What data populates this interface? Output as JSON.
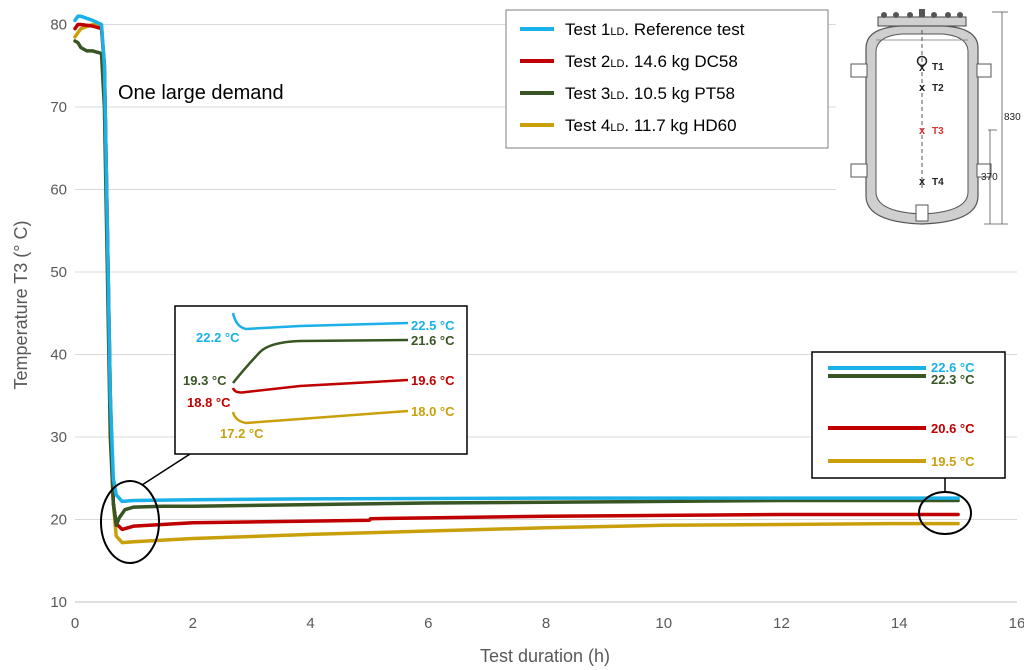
{
  "chart_data": {
    "type": "line",
    "xlabel": "Test duration (h)",
    "ylabel": "Temperature T3 (° C)",
    "xlim": [
      0,
      16
    ],
    "ylim": [
      10,
      82
    ],
    "x_ticks": [
      0,
      2,
      4,
      6,
      8,
      10,
      12,
      14,
      16
    ],
    "y_ticks": [
      10,
      20,
      30,
      40,
      50,
      60,
      70,
      80
    ],
    "grid": "horizontal",
    "legend_position": "top-right",
    "annotation": "One large demand",
    "series": [
      {
        "name": "Test 1",
        "subscript": "LD",
        "desc": ". Reference test",
        "color": "#1ab0e8",
        "x": [
          0,
          0.05,
          0.1,
          0.3,
          0.45,
          0.5,
          0.55,
          0.6,
          0.65,
          0.7,
          0.8,
          1.0,
          2,
          4,
          6,
          8,
          10,
          12,
          14,
          15
        ],
        "y": [
          80.5,
          81,
          81,
          80.5,
          80,
          75,
          55,
          35,
          25,
          23,
          22.2,
          22.3,
          22.4,
          22.5,
          22.55,
          22.6,
          22.6,
          22.6,
          22.6,
          22.6
        ]
      },
      {
        "name": "Test 2",
        "subscript": "LD",
        "desc": ". 14.6 kg DC58",
        "color": "#c00000",
        "x": [
          0,
          0.05,
          0.1,
          0.3,
          0.45,
          0.5,
          0.55,
          0.6,
          0.65,
          0.7,
          0.8,
          1.0,
          2,
          4,
          5,
          5.02,
          6,
          8,
          10,
          12,
          14,
          15
        ],
        "y": [
          79.5,
          80,
          80,
          79.8,
          79.5,
          75,
          55,
          35,
          22,
          19.5,
          18.8,
          19.2,
          19.6,
          19.8,
          19.9,
          20.1,
          20.2,
          20.4,
          20.5,
          20.6,
          20.6,
          20.6
        ]
      },
      {
        "name": "Test 3",
        "subscript": "LD",
        "desc": ". 10.5 kg PT58",
        "color": "#375623",
        "x": [
          0,
          0.05,
          0.1,
          0.2,
          0.3,
          0.45,
          0.5,
          0.55,
          0.6,
          0.65,
          0.7,
          0.75,
          0.85,
          1.0,
          1.5,
          2,
          4,
          6,
          8,
          10,
          12,
          14,
          15
        ],
        "y": [
          78,
          77.8,
          77.2,
          76.8,
          76.8,
          76.5,
          70,
          50,
          30,
          22,
          19.3,
          20.2,
          21.2,
          21.5,
          21.6,
          21.6,
          21.8,
          22.0,
          22.1,
          22.2,
          22.3,
          22.3,
          22.3
        ]
      },
      {
        "name": "Test 4",
        "subscript": "LD",
        "desc": ". 11.7 kg HD60",
        "color": "#c9a00c",
        "x": [
          0,
          0.05,
          0.1,
          0.3,
          0.45,
          0.5,
          0.55,
          0.6,
          0.65,
          0.7,
          0.8,
          1.0,
          2,
          4,
          6,
          8,
          10,
          12,
          14,
          15
        ],
        "y": [
          78.5,
          79,
          79.5,
          80,
          79.8,
          75,
          55,
          35,
          22,
          18,
          17.2,
          17.3,
          17.7,
          18.2,
          18.6,
          19.0,
          19.3,
          19.4,
          19.5,
          19.5
        ]
      }
    ],
    "inset_left_labels": [
      {
        "text": "22.2 °C",
        "color": "#1ab0e8"
      },
      {
        "text": "22.5 °C",
        "color": "#1ab0e8"
      },
      {
        "text": "21.6 °C",
        "color": "#375623"
      },
      {
        "text": "19.3 °C",
        "color": "#375623"
      },
      {
        "text": "19.6 °C",
        "color": "#c00000"
      },
      {
        "text": "18.8 °C",
        "color": "#c00000"
      },
      {
        "text": "18.0 °C",
        "color": "#c9a00c"
      },
      {
        "text": "17.2 °C",
        "color": "#c9a00c"
      }
    ],
    "inset_right_labels": [
      {
        "text": "22.6 °C",
        "color": "#1ab0e8"
      },
      {
        "text": "22.3 °C",
        "color": "#375623"
      },
      {
        "text": "20.6 °C",
        "color": "#c00000"
      },
      {
        "text": "19.5 °C",
        "color": "#c9a00c"
      }
    ],
    "tank_diagram": {
      "sensors": [
        "T1",
        "T2",
        "T3",
        "T4"
      ],
      "dimensions": [
        "830",
        "370"
      ]
    }
  }
}
